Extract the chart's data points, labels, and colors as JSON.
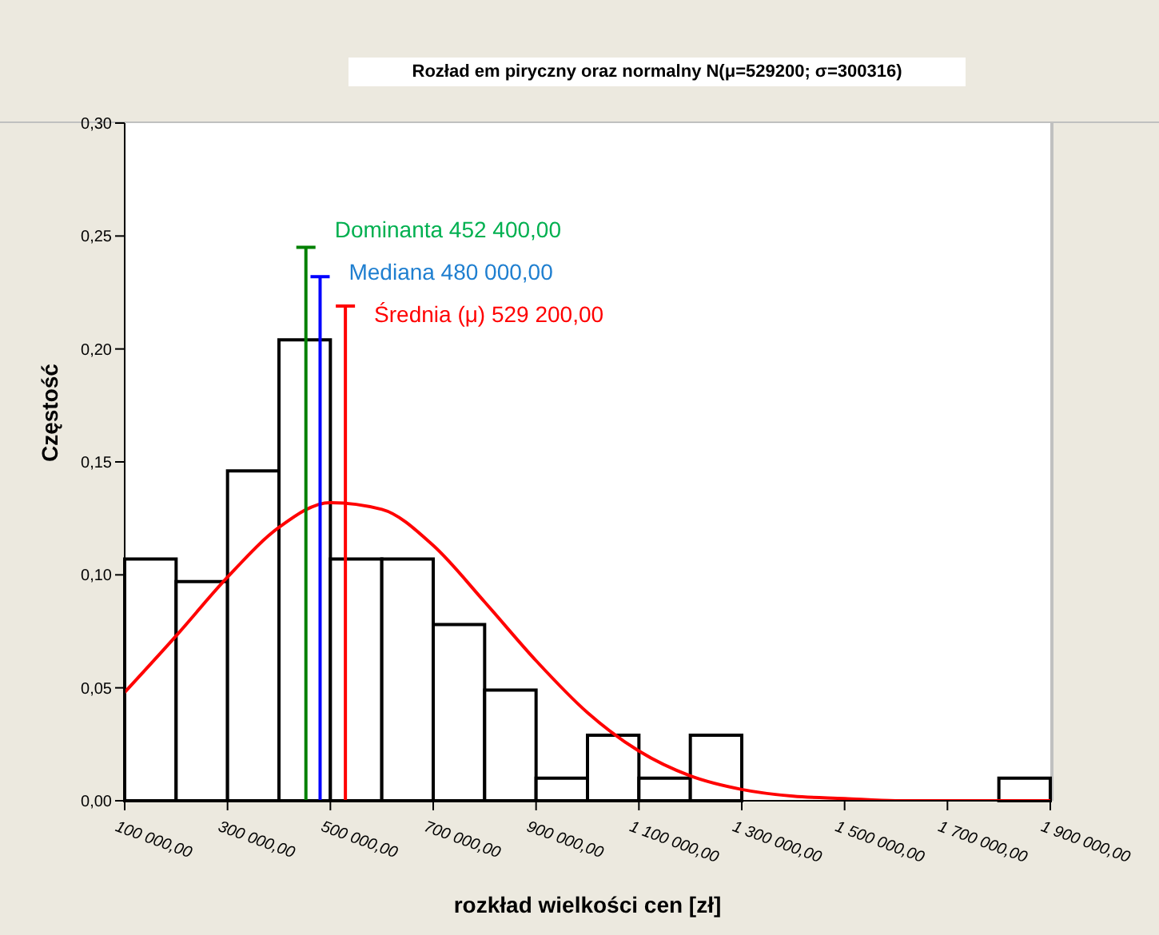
{
  "chart_data": {
    "type": "histogram",
    "title": "Rozład em piryczny oraz normalny N(μ=529200; σ=300316)",
    "xlabel": "rozkład wielkości cen  [zł]",
    "ylabel": "Częstość",
    "bins": [
      100000,
      200000,
      300000,
      400000,
      500000,
      600000,
      700000,
      800000,
      900000,
      1000000,
      1100000,
      1200000,
      1300000,
      1400000,
      1500000,
      1600000,
      1700000,
      1800000,
      1900000
    ],
    "values": [
      0.107,
      0.097,
      0.146,
      0.204,
      0.107,
      0.107,
      0.078,
      0.049,
      0.01,
      0.029,
      0.01,
      0.029,
      0,
      0,
      0,
      0,
      0,
      0.01
    ],
    "color": "#000000",
    "series": [
      {
        "type": "line",
        "color": "#ff0000",
        "x": [
          100000,
          200000,
          300000,
          400000,
          500000,
          600000,
          700000,
          800000,
          900000,
          1000000,
          1100000,
          1200000,
          1300000,
          1400000,
          1500000,
          1600000,
          1700000,
          1800000,
          1900000
        ],
        "values": [
          0.048,
          0.073,
          0.099,
          0.121,
          0.132,
          0.129,
          0.113,
          0.088,
          0.062,
          0.039,
          0.022,
          0.011,
          0.005,
          0.002,
          0.001,
          0,
          0,
          0,
          0
        ]
      },
      {
        "type": "line",
        "color": "#008000",
        "x": [
          452400,
          452400
        ],
        "values": [
          0,
          0.245
        ]
      },
      {
        "type": "line",
        "color": "#0000ff",
        "x": [
          480000,
          480000
        ],
        "values": [
          0,
          0.232
        ]
      },
      {
        "type": "line",
        "color": "#ff0000",
        "x": [
          529200,
          529200
        ],
        "values": [
          0,
          0.219
        ]
      }
    ],
    "annotations": [
      {
        "text": "Dominanta  452 400,00",
        "x": 452400,
        "y": 0.245
      },
      {
        "text": "Mediana   480 000,00",
        "x": 480000,
        "y": 0.232
      },
      {
        "text": "Średnia (μ)  529 200,00",
        "x": 529200,
        "y": 0.219
      }
    ],
    "xlim": [
      100000,
      1900000
    ],
    "xticks": [
      {
        "value": 100000,
        "label": "100 000,00"
      },
      {
        "value": 300000,
        "label": "300 000,00"
      },
      {
        "value": 500000,
        "label": "500 000,00"
      },
      {
        "value": 700000,
        "label": "700 000,00"
      },
      {
        "value": 900000,
        "label": "900 000,00"
      },
      {
        "value": 1100000,
        "label": "1 100 000,00"
      },
      {
        "value": 1300000,
        "label": "1 300 000,00"
      },
      {
        "value": 1500000,
        "label": "1 500 000,00"
      },
      {
        "value": 1700000,
        "label": "1 700 000,00"
      },
      {
        "value": 1900000,
        "label": "1 900 000,00"
      }
    ],
    "ylim": [
      0,
      0.3
    ],
    "yticks": [
      {
        "value": 0,
        "label": "0,00"
      },
      {
        "value": 0.05,
        "label": "0,05"
      },
      {
        "value": 0.1,
        "label": "0,10"
      },
      {
        "value": 0.15,
        "label": "0,15"
      },
      {
        "value": 0.2,
        "label": "0,20"
      },
      {
        "value": 0.25,
        "label": "0,25"
      },
      {
        "value": 0.3,
        "label": "0,30"
      }
    ],
    "grid": false,
    "marker": "none",
    "line_style": "solid"
  }
}
